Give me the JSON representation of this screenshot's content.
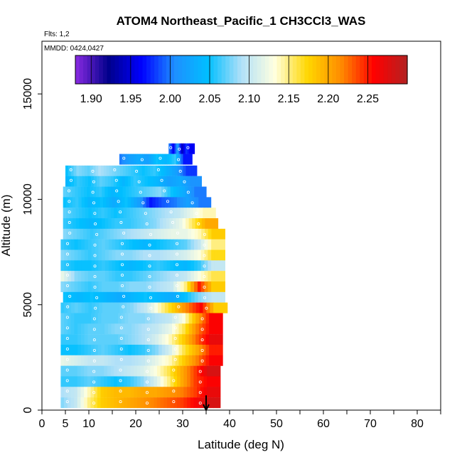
{
  "chart_data": {
    "type": "heatmap",
    "title": "ATOM4 Northeast_Pacific_1 CH3CCl3_WAS",
    "flights_note": "Flts: 1,2",
    "date_note": "MMDD: 0424,0427",
    "xlabel": "Latitude (deg N)",
    "ylabel": "Altitude (m)",
    "xlim": [
      0,
      85
    ],
    "ylim": [
      0,
      17500
    ],
    "x_ticks": [
      0,
      5,
      10,
      20,
      30,
      40,
      50,
      60,
      70,
      80
    ],
    "x_tick_labels": [
      "0",
      "5",
      "10",
      "20",
      "30",
      "40",
      "50",
      "60",
      "70",
      "80"
    ],
    "x_minor_ticks": [
      15,
      25,
      35,
      45,
      55,
      65,
      75,
      85
    ],
    "y_ticks": [
      0,
      5000,
      10000,
      15000
    ],
    "y_tick_labels": [
      "0",
      "5000",
      "10000",
      "15000"
    ],
    "colorbar": {
      "vmin": 1.88,
      "vmax": 2.3,
      "tick_values": [
        1.9,
        1.95,
        2.0,
        2.05,
        2.1,
        2.15,
        2.2,
        2.25
      ],
      "tick_labels": [
        "1.90",
        "1.95",
        "2.00",
        "2.05",
        "2.10",
        "2.15",
        "2.20",
        "2.25"
      ],
      "colors": [
        "#8a2be2",
        "#00008b",
        "#0000ff",
        "#1e90ff",
        "#00bfff",
        "#b0e0f8",
        "#ffffe0",
        "#ffd700",
        "#ff8c00",
        "#ff0000",
        "#b22222"
      ]
    },
    "arrow_marker": {
      "x": 35,
      "y_top": 700,
      "y_bottom": 0
    },
    "bands": [
      {
        "alt": 12400,
        "x0": 27,
        "x1": 32.5,
        "v": [
          2.0,
          1.96,
          2.02,
          1.94,
          1.98,
          1.96
        ]
      },
      {
        "alt": 11900,
        "x0": 16.5,
        "x1": 32,
        "v": [
          2.0,
          2.02,
          2.03,
          2.02,
          2.05,
          2.04,
          2.06,
          1.97
        ]
      },
      {
        "alt": 11350,
        "x0": 5,
        "x1": 33,
        "v": [
          2.05,
          2.08,
          2.07,
          2.09,
          2.08,
          2.07,
          2.06,
          2.05,
          2.06,
          2.04,
          2.02,
          1.98
        ]
      },
      {
        "alt": 10850,
        "x0": 5,
        "x1": 34,
        "v": [
          2.04,
          2.06,
          2.05,
          2.07,
          2.06,
          2.04,
          2.06,
          2.05,
          2.04,
          2.02,
          2.03,
          2.01
        ]
      },
      {
        "alt": 10350,
        "x0": 4.5,
        "x1": 35,
        "v": [
          2.07,
          2.06,
          2.05,
          2.06,
          2.04,
          2.05,
          2.06,
          2.07,
          2.08,
          2.05,
          2.03,
          2.0
        ]
      },
      {
        "alt": 9850,
        "x0": 4.5,
        "x1": 36,
        "v": [
          2.05,
          2.06,
          2.04,
          2.05,
          2.03,
          2.05,
          2.02,
          1.97,
          1.99,
          2.0,
          2.02,
          2.0
        ]
      },
      {
        "alt": 9350,
        "x0": 4.5,
        "x1": 37,
        "v": [
          2.07,
          2.06,
          2.05,
          2.06,
          2.05,
          2.06,
          2.07,
          2.08,
          2.09,
          2.1,
          2.12,
          2.14
        ]
      },
      {
        "alt": 8850,
        "x0": 4.5,
        "x1": 37.5,
        "v": [
          2.06,
          2.05,
          2.04,
          2.05,
          2.06,
          2.06,
          2.07,
          2.08,
          2.1,
          2.12,
          2.16,
          2.2
        ]
      },
      {
        "alt": 8350,
        "x0": 4.5,
        "x1": 39,
        "v": [
          2.08,
          2.07,
          2.06,
          2.07,
          2.08,
          2.09,
          2.1,
          2.11,
          2.12,
          2.12,
          2.14,
          2.18
        ]
      },
      {
        "alt": 7850,
        "x0": 4,
        "x1": 39,
        "v": [
          2.06,
          2.05,
          2.06,
          2.07,
          2.06,
          2.05,
          2.04,
          2.05,
          2.06,
          2.07,
          2.1,
          2.15
        ]
      },
      {
        "alt": 7350,
        "x0": 4,
        "x1": 39,
        "v": [
          2.08,
          2.07,
          2.06,
          2.07,
          2.08,
          2.08,
          2.09,
          2.09,
          2.1,
          2.11,
          2.13,
          2.17
        ]
      },
      {
        "alt": 6850,
        "x0": 4,
        "x1": 39,
        "v": [
          2.06,
          2.05,
          2.05,
          2.06,
          2.05,
          2.04,
          2.05,
          2.06,
          2.05,
          2.04,
          2.06,
          2.1
        ]
      },
      {
        "alt": 6350,
        "x0": 4,
        "x1": 39,
        "v": [
          2.12,
          2.08,
          2.07,
          2.07,
          2.06,
          2.06,
          2.07,
          2.08,
          2.09,
          2.1,
          2.13,
          2.16
        ]
      },
      {
        "alt": 5850,
        "x0": 4,
        "x1": 39,
        "v": [
          2.08,
          2.07,
          2.06,
          2.07,
          2.07,
          2.08,
          2.08,
          2.09,
          2.1,
          2.15,
          2.25,
          2.18
        ]
      },
      {
        "alt": 5350,
        "x0": 4.5,
        "x1": 39,
        "v": [
          2.05,
          2.04,
          2.05,
          2.04,
          2.03,
          2.04,
          2.05,
          2.04,
          2.03,
          2.05,
          2.08,
          2.1
        ]
      },
      {
        "alt": 4850,
        "x0": 4,
        "x1": 39.5,
        "v": [
          2.06,
          2.07,
          2.06,
          2.07,
          2.07,
          2.08,
          2.1,
          2.14,
          2.18,
          2.22,
          2.26,
          2.18
        ]
      },
      {
        "alt": 4350,
        "x0": 4,
        "x1": 38.5,
        "v": [
          2.07,
          2.06,
          2.06,
          2.07,
          2.07,
          2.08,
          2.08,
          2.09,
          2.1,
          2.13,
          2.2,
          2.26
        ]
      },
      {
        "alt": 3850,
        "x0": 4,
        "x1": 38.5,
        "v": [
          2.07,
          2.06,
          2.07,
          2.07,
          2.08,
          2.08,
          2.09,
          2.1,
          2.12,
          2.16,
          2.22,
          2.26
        ]
      },
      {
        "alt": 3350,
        "x0": 4,
        "x1": 38.5,
        "v": [
          2.06,
          2.06,
          2.07,
          2.07,
          2.07,
          2.08,
          2.09,
          2.11,
          2.14,
          2.18,
          2.23,
          2.27
        ]
      },
      {
        "alt": 2850,
        "x0": 4,
        "x1": 38.5,
        "v": [
          2.05,
          2.05,
          2.06,
          2.07,
          2.06,
          2.05,
          2.06,
          2.08,
          2.11,
          2.16,
          2.2,
          2.25
        ]
      },
      {
        "alt": 2350,
        "x0": 4,
        "x1": 38.5,
        "v": [
          2.12,
          2.11,
          2.1,
          2.1,
          2.09,
          2.09,
          2.1,
          2.12,
          2.14,
          2.18,
          2.22,
          2.26
        ]
      },
      {
        "alt": 1850,
        "x0": 4,
        "x1": 38,
        "v": [
          2.07,
          2.07,
          2.08,
          2.08,
          2.09,
          2.1,
          2.11,
          2.13,
          2.16,
          2.2,
          2.24,
          2.28
        ]
      },
      {
        "alt": 1350,
        "x0": 4,
        "x1": 38,
        "v": [
          2.06,
          2.06,
          2.07,
          2.06,
          2.05,
          2.06,
          2.08,
          2.11,
          2.15,
          2.2,
          2.24,
          2.26
        ]
      },
      {
        "alt": 850,
        "x0": 4,
        "x1": 38,
        "v": [
          2.09,
          2.1,
          2.14,
          2.18,
          2.19,
          2.19,
          2.2,
          2.2,
          2.21,
          2.22,
          2.24,
          2.27
        ]
      },
      {
        "alt": 350,
        "x0": 4,
        "x1": 38,
        "v": [
          2.08,
          2.1,
          2.15,
          2.18,
          2.19,
          2.2,
          2.21,
          2.22,
          2.23,
          2.24,
          2.26,
          2.28
        ]
      }
    ]
  }
}
